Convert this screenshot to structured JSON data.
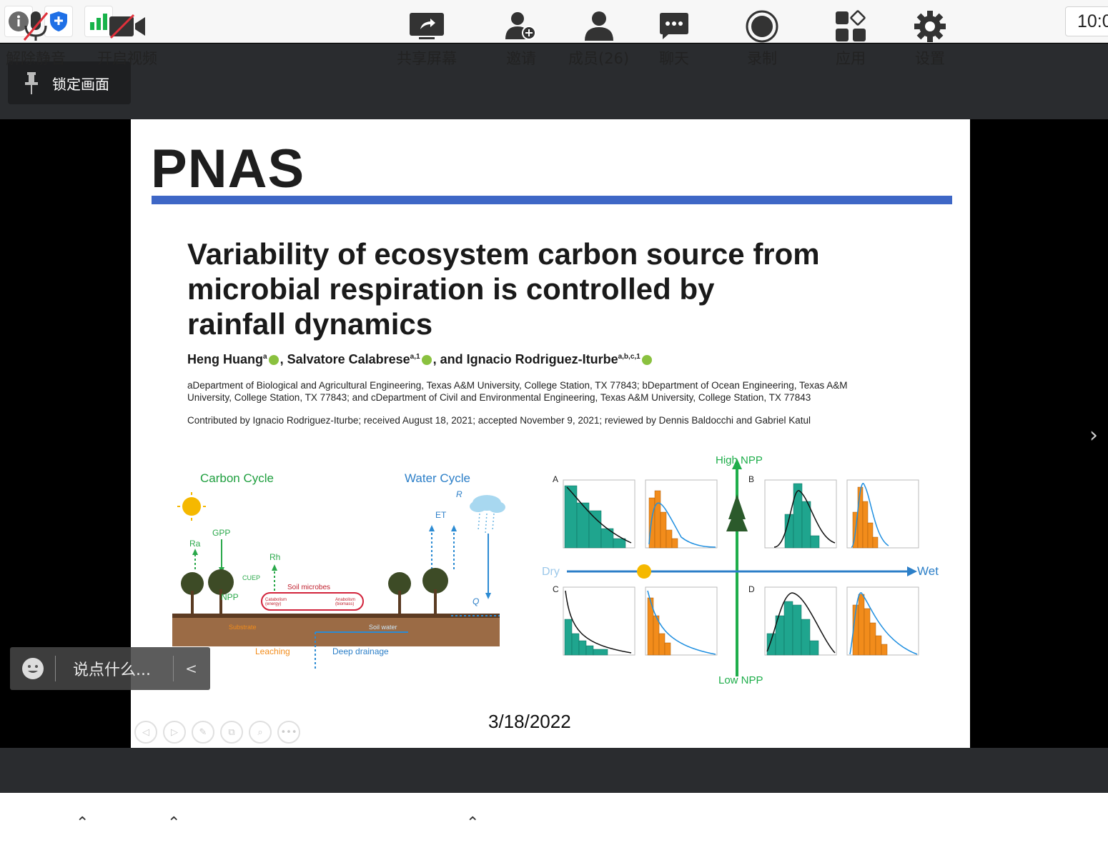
{
  "topbar": {
    "info_icon": "info-icon",
    "shield_icon": "shield-icon",
    "signal_icon": "signal-bars-icon",
    "clock": "10:0"
  },
  "lock_screen": {
    "label": "锁定画面",
    "icon": "pin-icon"
  },
  "slide": {
    "journal": "PNAS",
    "title_lines": [
      "Variability of ecosystem carbon source from",
      "microbial respiration is controlled by",
      "rainfall dynamics"
    ],
    "authors": {
      "a1_name": "Heng Huang",
      "a1_sup": "a",
      "a2_name": ", Salvatore Calabrese",
      "a2_sup": "a,1",
      "a3_name": ", and Ignacio Rodriguez-Iturbe",
      "a3_sup": "a,b,c,1"
    },
    "affiliations_line1": "aDepartment of Biological and Agricultural Engineering, Texas A&M University, College Station, TX 77843; bDepartment of Ocean Engineering, Texas A&M",
    "affiliations_line2": "University, College Station, TX 77843; and cDepartment of Civil and Environmental Engineering, Texas A&M University, College Station, TX 77843",
    "contributed": "Contributed by Ignacio Rodriguez-Iturbe; received August 18, 2021; accepted November 9, 2021; reviewed by Dennis Baldocchi and Gabriel Katul",
    "date": "3/18/2022",
    "figure_left": {
      "carbon_cycle": "Carbon Cycle",
      "water_cycle": "Water Cycle",
      "ra": "Ra",
      "gpp": "GPP",
      "cue": "CUEP",
      "npp": "NPP",
      "rh": "Rh",
      "soil_microbes": "Soil microbes",
      "catabolism": "Catabolism (energy)",
      "anabolism": "Anabolism (biomass)",
      "substrate": "Substrate",
      "soil_water": "Soil water",
      "leaching": "Leaching",
      "deep_drainage": "Deep drainage",
      "et": "ET",
      "r": "R",
      "q": "Q"
    },
    "figure_right": {
      "high_npp": "High NPP",
      "low_npp": "Low NPP",
      "dry": "Dry",
      "wet": "Wet",
      "panel_a": "A",
      "panel_b": "B",
      "panel_c": "C",
      "panel_d": "D",
      "teal": "#1fa58e",
      "orange": "#f28c1b"
    },
    "controls": [
      "◁",
      "▷",
      "✎",
      "⧉",
      "⌕",
      "•••"
    ]
  },
  "chat": {
    "placeholder": "说点什么...",
    "collapse": "<"
  },
  "toolbar": {
    "unmute": "解除静音",
    "start_video": "开启视频",
    "share_screen": "共享屏幕",
    "invite": "邀请",
    "members": "成员(26)",
    "chat": "聊天",
    "record": "录制",
    "apps": "应用",
    "settings": "设置"
  }
}
